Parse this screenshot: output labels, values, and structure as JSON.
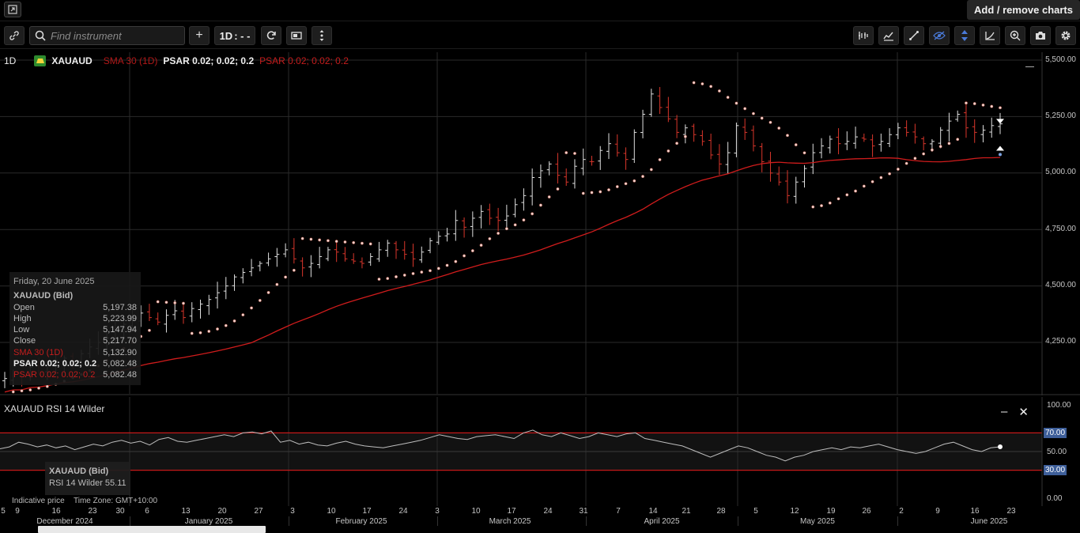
{
  "topbar": {
    "add_remove_label": "Add / remove charts"
  },
  "toolbar": {
    "search_placeholder": "Find instrument",
    "interval": "1D",
    "interval_extra": ": - -"
  },
  "legend": {
    "timeframe": "1D",
    "symbol": "XAUAUD",
    "sma": "SMA 30 (1D)",
    "psar1": "PSAR 0.02; 0.02; 0.2",
    "psar2": "PSAR 0.02; 0.02; 0.2"
  },
  "tooltip": {
    "date": "Friday, 20 June 2025",
    "instrument": "XAUAUD (Bid)",
    "rows": [
      {
        "k": "Open",
        "v": "5,197.38"
      },
      {
        "k": "High",
        "v": "5,223.99"
      },
      {
        "k": "Low",
        "v": "5,147.94"
      },
      {
        "k": "Close",
        "v": "5,217.70"
      },
      {
        "k": "SMA 30 (1D)",
        "v": "5,132.90"
      },
      {
        "k": "PSAR 0.02; 0.02; 0.2",
        "v": "5,082.48"
      },
      {
        "k": "PSAR 0.02; 0.02; 0.2",
        "v": "5,082.48"
      }
    ]
  },
  "rsi": {
    "title": "XAUAUD  RSI 14 Wilder",
    "tip_instrument": "XAUAUD (Bid)",
    "tip_value": "RSI 14 Wilder  55.11",
    "levels": [
      "100.00",
      "70.00",
      "50.00",
      "30.00",
      "0.00"
    ]
  },
  "footer": {
    "indicative": "Indicative price",
    "timezone": "Time Zone: GMT+10:00"
  },
  "colors": {
    "bull": "#e0e0e0",
    "bear": "#d9362b",
    "sma": "#d01c1c",
    "psar": "#f2d2cc",
    "level_line": "#c41a1a"
  },
  "chart_data": {
    "type": "candlestick",
    "symbol": "XAUAUD",
    "timeframe": "1D",
    "yticks": [
      "5,500.00",
      "5,250.00",
      "5,000.00",
      "4,750.00",
      "4,500.00",
      "4,250.00"
    ],
    "ylim": [
      4050,
      5530
    ],
    "xticks": [
      "5",
      "9",
      "16",
      "23",
      "30",
      "6",
      "13",
      "20",
      "27",
      "3",
      "10",
      "17",
      "24",
      "3",
      "10",
      "17",
      "24",
      "31",
      "7",
      "14",
      "21",
      "28",
      "5",
      "12",
      "19",
      "26",
      "2",
      "9",
      "16",
      "23"
    ],
    "months": [
      "December 2024",
      "January 2025",
      "February 2025",
      "March 2025",
      "April 2025",
      "May 2025",
      "June 2025"
    ],
    "close_series": [
      4090,
      4110,
      4100,
      4140,
      4120,
      4150,
      4170,
      4180,
      4160,
      4200,
      4230,
      4250,
      4270,
      4300,
      4330,
      4350,
      4380,
      4360,
      4340,
      4370,
      4390,
      4360,
      4400,
      4420,
      4440,
      4470,
      4500,
      4540,
      4560,
      4580,
      4600,
      4620,
      4640,
      4660,
      4620,
      4580,
      4600,
      4630,
      4660,
      4650,
      4620,
      4610,
      4600,
      4630,
      4660,
      4690,
      4660,
      4640,
      4620,
      4650,
      4700,
      4720,
      4730,
      4790,
      4760,
      4800,
      4830,
      4800,
      4790,
      4810,
      4860,
      4900,
      4980,
      5010,
      5040,
      4990,
      4960,
      5030,
      5060,
      5050,
      5100,
      5130,
      5090,
      5060,
      5180,
      5260,
      5350,
      5290,
      5240,
      5180,
      5200,
      5170,
      5140,
      5080,
      5040,
      5090,
      5210,
      5180,
      5120,
      5050,
      5000,
      4960,
      4900,
      4960,
      5020,
      5090,
      5120,
      5150,
      5130,
      5140,
      5160,
      5150,
      5120,
      5140,
      5170,
      5200,
      5180,
      5160,
      5130,
      5140,
      5190,
      5230,
      5260,
      5200,
      5180,
      5190,
      5210,
      5217.7
    ],
    "rsi_series": [
      53,
      55,
      60,
      58,
      55,
      57,
      54,
      56,
      52,
      55,
      58,
      56,
      60,
      62,
      59,
      61,
      57,
      63,
      65,
      61,
      60,
      62,
      64,
      66,
      68,
      66,
      70,
      71,
      69,
      72,
      60,
      62,
      58,
      60,
      57,
      56,
      59,
      61,
      58,
      56,
      55,
      54,
      56,
      58,
      60,
      62,
      65,
      68,
      66,
      64,
      63,
      66,
      67,
      68,
      66,
      64,
      70,
      73,
      68,
      66,
      70,
      67,
      64,
      66,
      70,
      68,
      66,
      69,
      70,
      64,
      62,
      60,
      58,
      56,
      52,
      48,
      44,
      48,
      52,
      56,
      54,
      50,
      46,
      44,
      40,
      44,
      46,
      50,
      52,
      54,
      52,
      55,
      54,
      56,
      58,
      55,
      52,
      50,
      48,
      50,
      54,
      58,
      60,
      56,
      52,
      50,
      54,
      55.11
    ]
  }
}
